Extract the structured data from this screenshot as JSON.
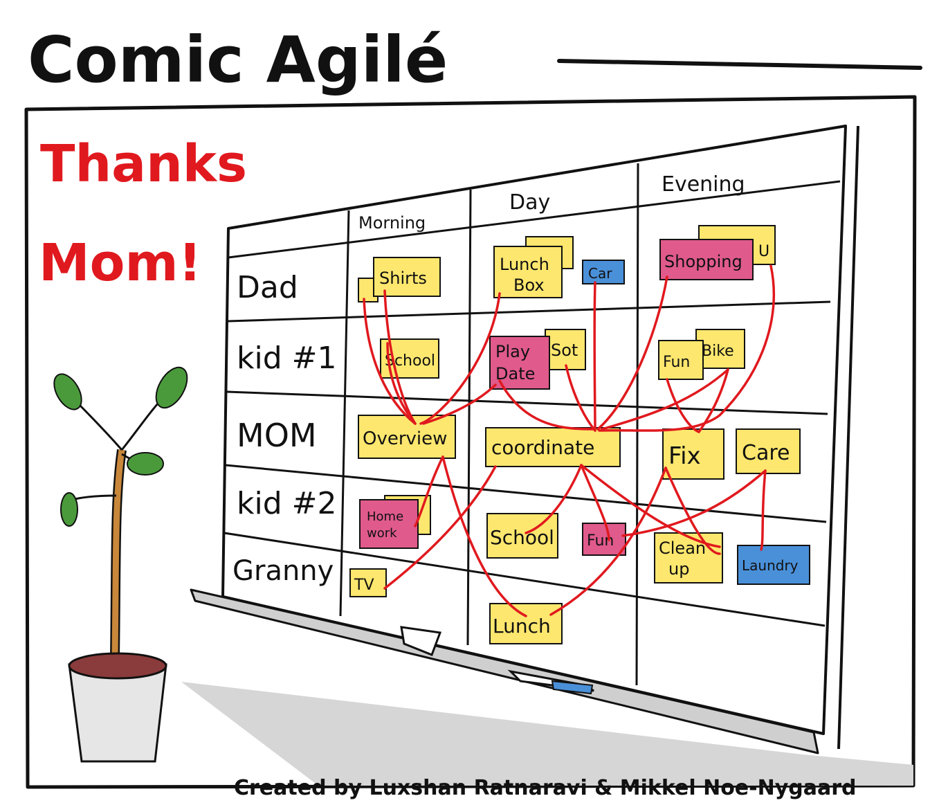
{
  "comic": {
    "title": "Comic Agilé",
    "headline_line1": "Thanks",
    "headline_line2": "Mom!",
    "credits": "Created by Luxshan Ratnaravi & Mikkel Noe-Nygaard"
  },
  "board": {
    "columns": [
      "Morning",
      "Day",
      "Evening"
    ],
    "rows": [
      "Dad",
      "kid #1",
      "MOM",
      "kid #2",
      "Granny"
    ]
  },
  "notes": {
    "shirts": "Shirts",
    "lunch_box_1": "Lunch",
    "lunch_box_2": "Box",
    "car": "Car",
    "shopping": "Shopping",
    "u": "U",
    "school_kid1": "School",
    "play_date_1": "Play",
    "play_date_2": "Date",
    "sot": "Sot",
    "fun_kid1": "Fun",
    "bike": "Bike",
    "overview": "Overview",
    "coordinate": "coordinate",
    "fix": "Fix",
    "care": "Care",
    "homework_1": "Home",
    "homework_2": "work",
    "school_kid2": "School",
    "fun_kid2": "Fun",
    "cleanup_1": "Clean",
    "cleanup_2": "up",
    "laundry": "Laundry",
    "tv": "TV",
    "lunch": "Lunch"
  },
  "colors": {
    "yellow_note": "#fde76e",
    "pink_note": "#e05a8c",
    "blue_note": "#4a90d9",
    "line_red": "#e0191e",
    "headline_red": "#e0191e",
    "plant_green": "#4a9a3c",
    "trunk": "#c8873a"
  }
}
